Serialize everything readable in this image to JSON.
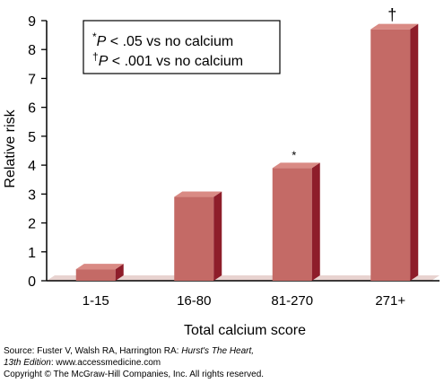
{
  "chart_data": {
    "type": "bar",
    "categories": [
      "1-15",
      "16-80",
      "81-270",
      "271+"
    ],
    "values": [
      0.4,
      2.9,
      3.9,
      8.7
    ],
    "bar_annotations": [
      "",
      "",
      "*",
      "†"
    ],
    "xlabel": "Total calcium score",
    "ylabel": "Relative risk",
    "ylim": [
      0,
      9
    ],
    "yticks": [
      0,
      1,
      2,
      3,
      4,
      5,
      6,
      7,
      8,
      9
    ],
    "grid": false,
    "legend_position": "top-left",
    "notes": [
      {
        "mark": "*",
        "p": "P",
        "text": " < .05 vs no calcium"
      },
      {
        "mark": "†",
        "p": "P",
        "text": " < .001 vs no calcium"
      }
    ],
    "colors": {
      "bar_front": "#c46a66",
      "bar_side": "#8e1d2a",
      "bar_top": "#d98a84",
      "floor": "#e8d3d0"
    }
  },
  "source": {
    "line1_prefix": "Source: Fuster V, Walsh RA, Harrington RA: ",
    "line1_title": "Hurst's The Heart,",
    "line2_edition": "13th Edition",
    "line2_rest": ": www.accessmedicine.com",
    "line3": "Copyright © The McGraw-Hill Companies, Inc. All rights reserved."
  }
}
